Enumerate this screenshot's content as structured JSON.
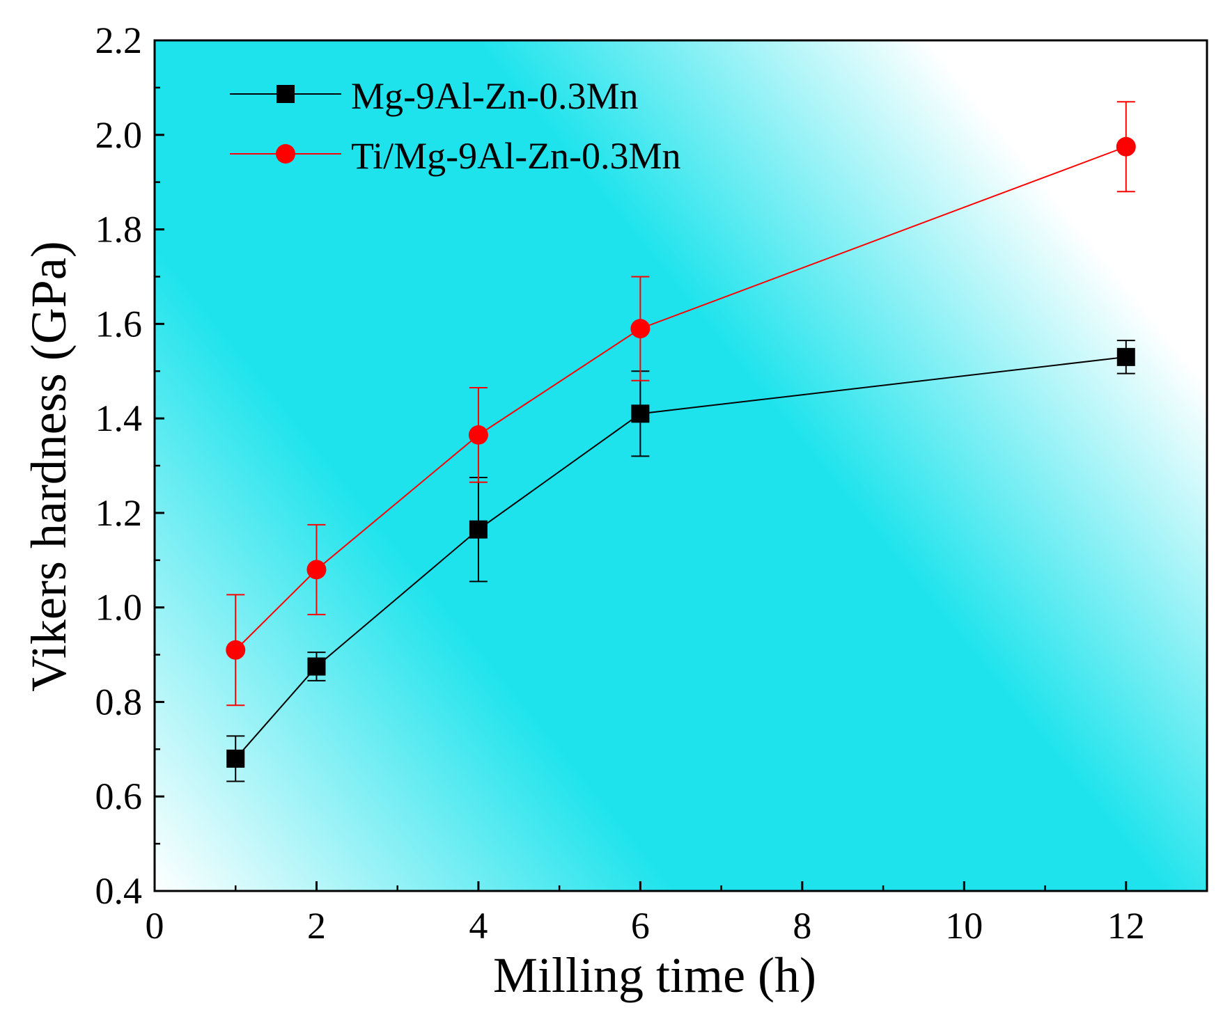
{
  "chart_data": {
    "type": "line",
    "title": "",
    "xlabel": "Milling time (h)",
    "ylabel": "Vikers hardness (GPa)",
    "xlim": [
      0,
      13
    ],
    "ylim": [
      0.4,
      2.2
    ],
    "x_ticks": [
      0,
      2,
      4,
      6,
      8,
      10,
      12
    ],
    "x_tick_labels": [
      "0",
      "2",
      "4",
      "6",
      "8",
      "10",
      "12"
    ],
    "y_ticks": [
      0.4,
      0.6,
      0.8,
      1.0,
      1.2,
      1.4,
      1.6,
      1.8,
      2.0,
      2.2
    ],
    "y_tick_labels": [
      "0.4",
      "0.6",
      "0.8",
      "1.0",
      "1.2",
      "1.4",
      "1.6",
      "1.8",
      "2.0",
      "2.2"
    ],
    "legend_position": "top-left",
    "background": {
      "gradient_color": "#1ee3ec",
      "fade_color": "#ffffff"
    },
    "series": [
      {
        "name": "Mg-9Al-Zn-0.3Mn",
        "marker": "square",
        "color": "#000000",
        "x": [
          1,
          2,
          4,
          6,
          12
        ],
        "values": [
          0.68,
          0.875,
          1.165,
          1.41,
          1.53
        ],
        "errors": [
          0.048,
          0.03,
          0.11,
          0.09,
          0.035
        ]
      },
      {
        "name": "Ti/Mg-9Al-Zn-0.3Mn",
        "marker": "circle",
        "color": "#ff0000",
        "x": [
          1,
          2,
          4,
          6,
          12
        ],
        "values": [
          0.91,
          1.08,
          1.365,
          1.59,
          1.975
        ],
        "errors": [
          0.117,
          0.095,
          0.1,
          0.11,
          0.095
        ]
      }
    ]
  }
}
